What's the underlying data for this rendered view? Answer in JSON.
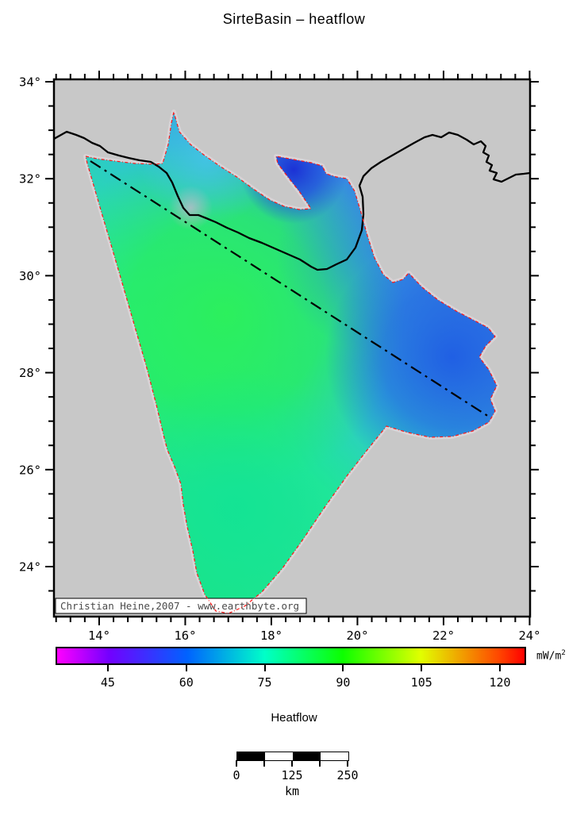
{
  "title": "SirteBasin – heatflow",
  "map": {
    "attribution": "Christian Heine,2007 - www.earthbyte.org",
    "x_tick_labels": [
      "14°",
      "16°",
      "18°",
      "20°",
      "22°",
      "24°"
    ],
    "y_tick_labels": [
      "34°",
      "32°",
      "30°",
      "28°",
      "26°",
      "24°"
    ],
    "background_color": "#c8c8c8",
    "coastline_color": "#000000",
    "basin_outline_color": "#ff1616",
    "transect_line_color": "#000000",
    "basin_fill_colors": {
      "center_green": "#2cf158",
      "southern_tongue_teal": "#12e394",
      "northwest_spike_cyan": "#45c4ea",
      "northeast_wedge_dark_blue": "#1b2ed6",
      "east_lobe_blue": "#1f5ce4"
    }
  },
  "colorbar": {
    "label": "Heatflow",
    "unit_base": "mW/m",
    "unit_exponent": "2",
    "range": [
      35,
      125
    ],
    "tick_values": [
      45,
      60,
      75,
      90,
      105,
      120
    ],
    "tick_labels": [
      "45",
      "60",
      "75",
      "90",
      "105",
      "120"
    ],
    "stops": [
      {
        "value": 35,
        "color": "#FF00FF"
      },
      {
        "value": 45,
        "color": "#7300FF"
      },
      {
        "value": 60,
        "color": "#0062FF"
      },
      {
        "value": 75,
        "color": "#00FFC8"
      },
      {
        "value": 90,
        "color": "#0DFF00"
      },
      {
        "value": 105,
        "color": "#E1FF00"
      },
      {
        "value": 120,
        "color": "#FF4800"
      },
      {
        "value": 125,
        "color": "#FF0000"
      }
    ]
  },
  "scalebar": {
    "tick_labels": [
      "0",
      "125",
      "250"
    ],
    "unit": "km",
    "segment_colors": [
      "#000000",
      "#ffffff",
      "#000000",
      "#ffffff"
    ]
  }
}
